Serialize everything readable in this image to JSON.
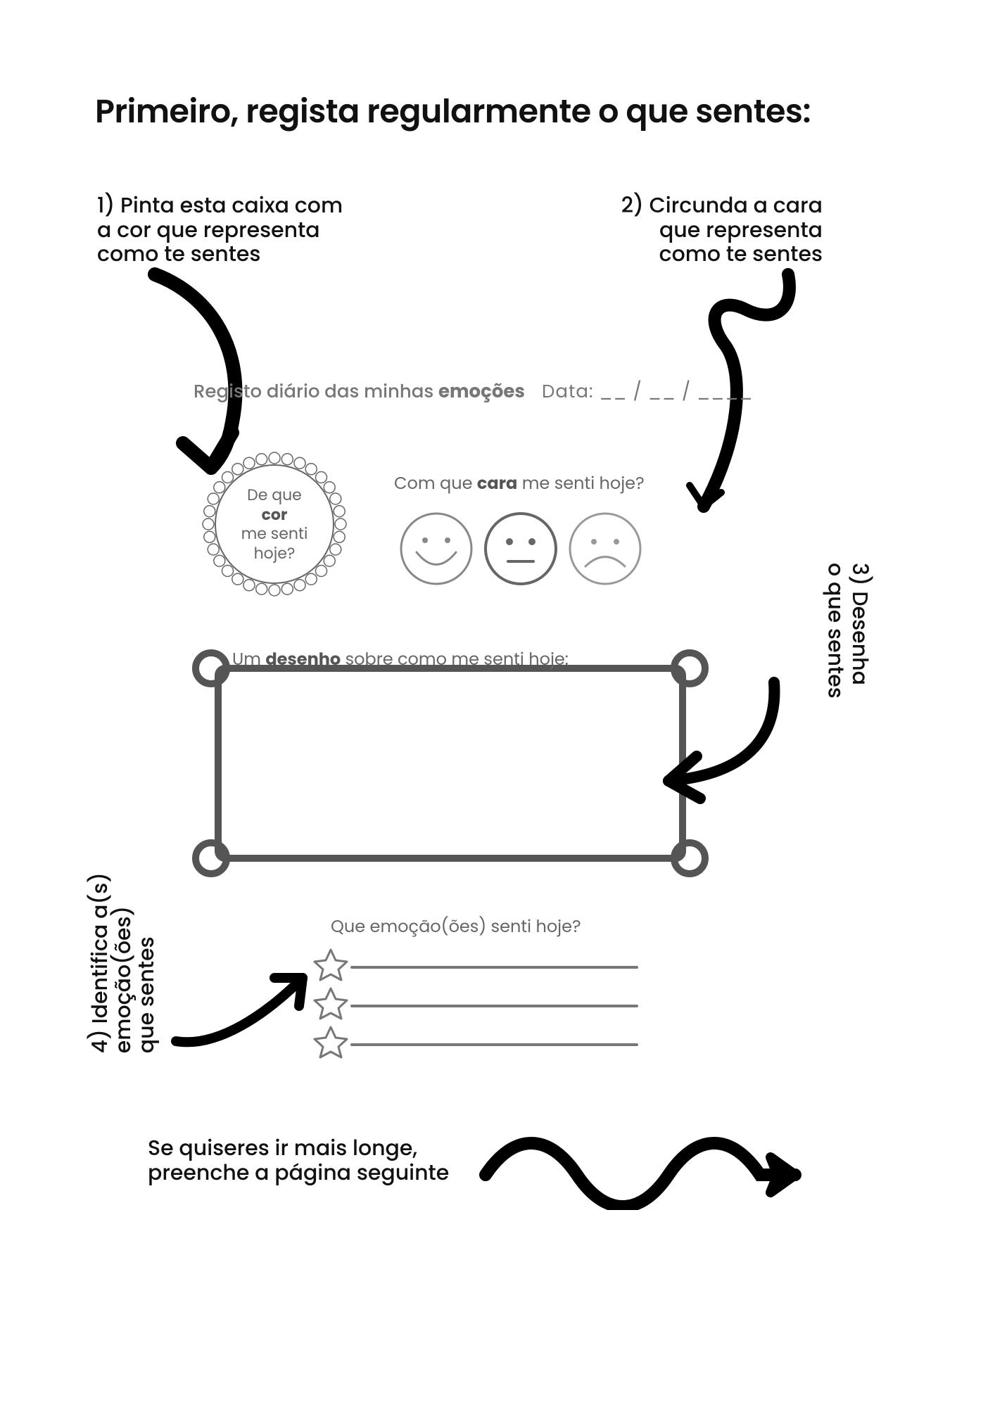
{
  "title": "Primeiro, regista regularmente o que sentes:",
  "steps": {
    "s1": "1) Pinta esta caixa com\na cor que representa\ncomo te sentes",
    "s2": "2) Circunda a cara\nque representa\ncomo te sentes",
    "s3": "3) Desenha\no que sentes",
    "s4": "4) Identifica a(s)\nemoção(ões)\nque sentes"
  },
  "diary": {
    "heading_prefix": "Registo diário das minhas ",
    "heading_bold": "emoções",
    "date_label": "Data: __ / __ / ____",
    "color_q_prefix": "De que ",
    "color_q_bold": "cor",
    "color_q_suffix": "me senti hoje?",
    "face_q_prefix": "Com que ",
    "face_q_bold": "cara",
    "face_q_suffix": " me senti hoje?",
    "drawing_prefix": "Um ",
    "drawing_bold": "desenho",
    "drawing_suffix": " sobre como me senti hoje:",
    "emotions_q": "Que emoção(ões) senti hoje?"
  },
  "footer": "Se quiseres ir mais longe,\npreenche a página seguinte",
  "colors": {
    "text": "#111111",
    "muted": "#777777",
    "stroke": "#555555",
    "frame": "#555555",
    "line": "#888888"
  }
}
